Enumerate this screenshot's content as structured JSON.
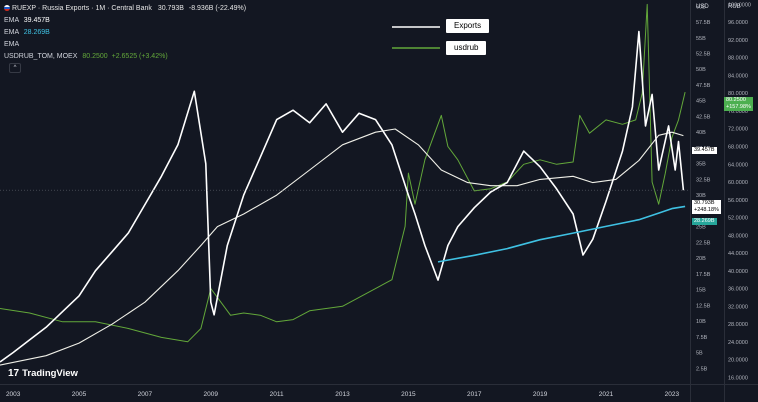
{
  "header": {
    "title": "RUEXP · Russia Exports · 1M · Central Bank",
    "last": "30.793B",
    "change": "-8.936B (-22.49%)",
    "ema1_label": "EMA",
    "ema1_value": "39.457B",
    "ema2_label": "EMA",
    "ema2_value": "28.269B",
    "ema3_label": "EMA",
    "usd_label": "USDRUB_TOM, MOEX",
    "usd_value": "80.2500",
    "usd_change": "+2.6525 (+3.42%)",
    "collapse_glyph": "^"
  },
  "axis_units": {
    "left": "USD",
    "right": "RUB"
  },
  "branding": {
    "logo_text": "17",
    "name": "TradingView"
  },
  "price_labels": {
    "usd": {
      "value": "80.2500",
      "pct": "+157.98%"
    },
    "ema1": {
      "value": "39.457B"
    },
    "exports": {
      "value": "30.793B",
      "pct": "+248.18%"
    },
    "ema2": {
      "value": "28.269B"
    }
  },
  "colors": {
    "background": "#131722",
    "exports": "#ffffff",
    "ema_exports": "#f0f0e8",
    "usdrub": "#63a83a",
    "ema_usdrub": "#3fc1e3",
    "usd_badge": "#4caf50",
    "ema2_badge": "#26a69a"
  },
  "chart_data": {
    "type": "line",
    "title": "RUEXP · Russia Exports · 1M · Central Bank",
    "x_range": [
      2002.6,
      2023.55
    ],
    "x_ticks": [
      "2003",
      "2005",
      "2007",
      "2009",
      "2011",
      "2013",
      "2015",
      "2017",
      "2019",
      "2021",
      "2023"
    ],
    "left_axis": {
      "unit": "USD",
      "range": [
        0,
        61
      ],
      "ticks": [
        "2.5B",
        "5B",
        "7.5B",
        "10B",
        "12.5B",
        "15B",
        "17.5B",
        "20B",
        "22.5B",
        "25B",
        "27.5B",
        "30B",
        "32.5B",
        "35B",
        "37.5B",
        "40B",
        "42.5B",
        "45B",
        "47.5B",
        "50B",
        "52.5B",
        "55B",
        "57.5B",
        "60B"
      ]
    },
    "right_axis": {
      "unit": "RUB",
      "range": [
        14.5,
        101
      ],
      "ticks": [
        "16.0000",
        "20.0000",
        "24.0000",
        "28.0000",
        "32.0000",
        "36.0000",
        "40.0000",
        "44.0000",
        "48.0000",
        "52.0000",
        "56.0000",
        "60.0000",
        "64.0000",
        "68.0000",
        "72.0000",
        "76.0000",
        "80.0000",
        "84.0000",
        "88.0000",
        "92.0000",
        "96.0000",
        "100.0000"
      ]
    },
    "legend": {
      "position": "top-center",
      "entries": [
        "Exports",
        "usdrub"
      ]
    },
    "series": [
      {
        "name": "Exports",
        "axis": "left",
        "x": [
          2002.6,
          2003.0,
          2003.5,
          2004.0,
          2004.5,
          2005.0,
          2005.5,
          2006.0,
          2006.5,
          2007.0,
          2007.5,
          2008.0,
          2008.5,
          2008.85,
          2009.0,
          2009.1,
          2009.5,
          2010.0,
          2010.5,
          2011.0,
          2011.5,
          2012.0,
          2012.5,
          2013.0,
          2013.5,
          2014.0,
          2014.5,
          2015.0,
          2015.2,
          2015.5,
          2015.9,
          2016.2,
          2016.5,
          2017.0,
          2017.5,
          2018.0,
          2018.5,
          2019.0,
          2019.5,
          2020.0,
          2020.3,
          2020.6,
          2021.0,
          2021.5,
          2021.8,
          2022.0,
          2022.2,
          2022.4,
          2022.6,
          2022.9,
          2023.1,
          2023.2,
          2023.35
        ],
        "values": [
          3.5,
          5.0,
          7.0,
          9.0,
          11.5,
          14.0,
          18.0,
          21.0,
          24.0,
          28.5,
          33.0,
          38.0,
          46.5,
          35.0,
          13.0,
          11.0,
          22.0,
          30.0,
          36.0,
          42.0,
          43.5,
          41.5,
          44.5,
          40.0,
          43.0,
          42.0,
          38.0,
          30.0,
          27.0,
          22.0,
          16.5,
          22.0,
          25.0,
          28.0,
          30.5,
          32.0,
          37.0,
          34.5,
          31.0,
          27.0,
          20.5,
          23.0,
          29.0,
          37.0,
          44.0,
          56.0,
          41.0,
          46.0,
          34.0,
          41.0,
          34.0,
          38.5,
          30.793
        ]
      },
      {
        "name": "EMA",
        "axis": "left",
        "x": [
          2002.6,
          2004.0,
          2005.0,
          2006.0,
          2007.0,
          2008.0,
          2008.7,
          2009.2,
          2010.0,
          2011.0,
          2012.0,
          2013.0,
          2014.0,
          2014.6,
          2015.3,
          2016.0,
          2016.8,
          2017.5,
          2018.3,
          2019.0,
          2020.0,
          2020.6,
          2021.3,
          2022.0,
          2022.6,
          2023.0,
          2023.35
        ],
        "values": [
          3.0,
          4.5,
          6.5,
          9.5,
          13.0,
          18.0,
          22.0,
          25.0,
          27.0,
          30.0,
          34.0,
          38.0,
          40.0,
          40.5,
          38.0,
          34.0,
          32.0,
          31.5,
          31.5,
          32.5,
          33.0,
          32.0,
          32.5,
          35.5,
          39.5,
          40.0,
          39.457
        ]
      },
      {
        "name": "usdrub",
        "axis": "right",
        "x": [
          2002.6,
          2003.5,
          2004.5,
          2005.5,
          2006.5,
          2007.5,
          2008.3,
          2008.7,
          2009.0,
          2009.2,
          2009.6,
          2010.0,
          2010.5,
          2011.0,
          2011.5,
          2012.0,
          2012.5,
          2013.0,
          2013.5,
          2014.0,
          2014.5,
          2014.9,
          2015.0,
          2015.2,
          2015.5,
          2015.8,
          2016.0,
          2016.2,
          2016.5,
          2017.0,
          2017.5,
          2018.0,
          2018.5,
          2019.0,
          2019.5,
          2020.0,
          2020.2,
          2020.5,
          2021.0,
          2021.5,
          2021.9,
          2022.1,
          2022.25,
          2022.4,
          2022.6,
          2022.8,
          2023.0,
          2023.2,
          2023.4
        ],
        "values": [
          31.5,
          30.5,
          28.5,
          28.5,
          27.0,
          25.0,
          24.0,
          27.0,
          36.0,
          34.0,
          30.0,
          30.5,
          30.0,
          28.5,
          29.0,
          31.0,
          31.5,
          32.0,
          34.0,
          36.0,
          38.0,
          50.0,
          62.0,
          55.0,
          65.0,
          71.0,
          75.0,
          68.0,
          65.0,
          58.0,
          58.5,
          60.0,
          64.0,
          65.0,
          64.0,
          64.5,
          75.0,
          71.0,
          74.0,
          73.0,
          74.0,
          80.0,
          100.0,
          60.0,
          55.0,
          62.0,
          70.0,
          74.0,
          80.25
        ]
      },
      {
        "name": "EMA",
        "axis": "right",
        "x": [
          2015.9,
          2017.0,
          2018.0,
          2019.0,
          2020.0,
          2021.0,
          2022.0,
          2022.6,
          2023.0,
          2023.4
        ],
        "values": [
          42.0,
          43.5,
          45.0,
          47.0,
          48.5,
          50.0,
          51.5,
          53.0,
          54.0,
          54.5
        ]
      }
    ]
  }
}
